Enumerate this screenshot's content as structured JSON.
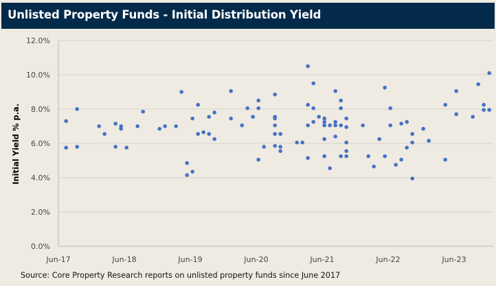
{
  "chart_data": {
    "type": "scatter",
    "title": "Unlisted Property Funds - Initial Distribution Yield",
    "xlabel": "",
    "ylabel": "Initial Yield % p.a.",
    "source": "Source: Core Property Research reports on unlisted property funds since June 2017",
    "ylim": [
      0,
      12
    ],
    "yticks": [
      "0.0%",
      "2.0%",
      "4.0%",
      "6.0%",
      "8.0%",
      "10.0%",
      "12.0%"
    ],
    "xlim": [
      "2017-06",
      "2024-01"
    ],
    "xticks": [
      "Jun-17",
      "Jun-18",
      "Jun-19",
      "Jun-20",
      "Jun-21",
      "Jun-22",
      "Jun-23"
    ],
    "grid": "horizontal",
    "legend": "none",
    "marker_color": "#4472c4",
    "points": [
      [
        "2017-07",
        7.3
      ],
      [
        "2017-07",
        5.75
      ],
      [
        "2017-09",
        8.0
      ],
      [
        "2017-09",
        5.8
      ],
      [
        "2018-01",
        7.0
      ],
      [
        "2018-02",
        6.55
      ],
      [
        "2018-04",
        7.15
      ],
      [
        "2018-04",
        5.8
      ],
      [
        "2018-05",
        7.0
      ],
      [
        "2018-05",
        6.85
      ],
      [
        "2018-06",
        5.75
      ],
      [
        "2018-08",
        7.0
      ],
      [
        "2018-09",
        7.85
      ],
      [
        "2018-12",
        6.85
      ],
      [
        "2019-01",
        7.0
      ],
      [
        "2019-03",
        7.0
      ],
      [
        "2019-04",
        9.0
      ],
      [
        "2019-05",
        4.85
      ],
      [
        "2019-05",
        4.15
      ],
      [
        "2019-06",
        4.35
      ],
      [
        "2019-06",
        7.45
      ],
      [
        "2019-07",
        8.25
      ],
      [
        "2019-07",
        6.55
      ],
      [
        "2019-08",
        6.65
      ],
      [
        "2019-09",
        7.55
      ],
      [
        "2019-09",
        6.55
      ],
      [
        "2019-10",
        7.8
      ],
      [
        "2019-10",
        6.25
      ],
      [
        "2020-01",
        9.05
      ],
      [
        "2020-01",
        7.45
      ],
      [
        "2020-03",
        7.05
      ],
      [
        "2020-04",
        8.05
      ],
      [
        "2020-05",
        7.55
      ],
      [
        "2020-06",
        8.5
      ],
      [
        "2020-06",
        8.05
      ],
      [
        "2020-06",
        5.05
      ],
      [
        "2020-07",
        5.8
      ],
      [
        "2020-09",
        8.85
      ],
      [
        "2020-09",
        7.55
      ],
      [
        "2020-09",
        7.45
      ],
      [
        "2020-09",
        7.05
      ],
      [
        "2020-09",
        6.55
      ],
      [
        "2020-09",
        5.85
      ],
      [
        "2020-10",
        6.55
      ],
      [
        "2020-10",
        5.8
      ],
      [
        "2020-10",
        5.55
      ],
      [
        "2021-01",
        6.05
      ],
      [
        "2021-02",
        6.05
      ],
      [
        "2021-03",
        10.5
      ],
      [
        "2021-03",
        8.25
      ],
      [
        "2021-03",
        7.05
      ],
      [
        "2021-03",
        5.15
      ],
      [
        "2021-04",
        9.5
      ],
      [
        "2021-04",
        8.05
      ],
      [
        "2021-04",
        7.25
      ],
      [
        "2021-05",
        7.55
      ],
      [
        "2021-06",
        7.45
      ],
      [
        "2021-06",
        7.25
      ],
      [
        "2021-06",
        7.05
      ],
      [
        "2021-06",
        6.25
      ],
      [
        "2021-06",
        5.25
      ],
      [
        "2021-07",
        7.05
      ],
      [
        "2021-07",
        4.55
      ],
      [
        "2021-08",
        9.05
      ],
      [
        "2021-08",
        7.25
      ],
      [
        "2021-08",
        7.05
      ],
      [
        "2021-08",
        6.4
      ],
      [
        "2021-09",
        8.5
      ],
      [
        "2021-09",
        8.05
      ],
      [
        "2021-09",
        7.05
      ],
      [
        "2021-09",
        5.25
      ],
      [
        "2021-10",
        7.45
      ],
      [
        "2021-10",
        6.95
      ],
      [
        "2021-10",
        6.05
      ],
      [
        "2021-10",
        5.55
      ],
      [
        "2021-10",
        5.25
      ],
      [
        "2022-01",
        7.05
      ],
      [
        "2022-02",
        5.25
      ],
      [
        "2022-03",
        4.65
      ],
      [
        "2022-04",
        6.25
      ],
      [
        "2022-05",
        9.25
      ],
      [
        "2022-05",
        5.25
      ],
      [
        "2022-06",
        8.05
      ],
      [
        "2022-06",
        7.05
      ],
      [
        "2022-07",
        4.75
      ],
      [
        "2022-08",
        7.15
      ],
      [
        "2022-08",
        5.05
      ],
      [
        "2022-09",
        7.25
      ],
      [
        "2022-09",
        5.75
      ],
      [
        "2022-10",
        6.55
      ],
      [
        "2022-10",
        6.05
      ],
      [
        "2022-10",
        3.95
      ],
      [
        "2022-12",
        6.85
      ],
      [
        "2023-01",
        6.15
      ],
      [
        "2023-04",
        8.25
      ],
      [
        "2023-04",
        5.05
      ],
      [
        "2023-06",
        9.05
      ],
      [
        "2023-06",
        7.7
      ],
      [
        "2023-09",
        7.55
      ],
      [
        "2023-10",
        9.45
      ],
      [
        "2023-11",
        8.25
      ],
      [
        "2023-11",
        7.95
      ],
      [
        "2023-12",
        7.95
      ],
      [
        "2023-12",
        10.1
      ]
    ]
  }
}
